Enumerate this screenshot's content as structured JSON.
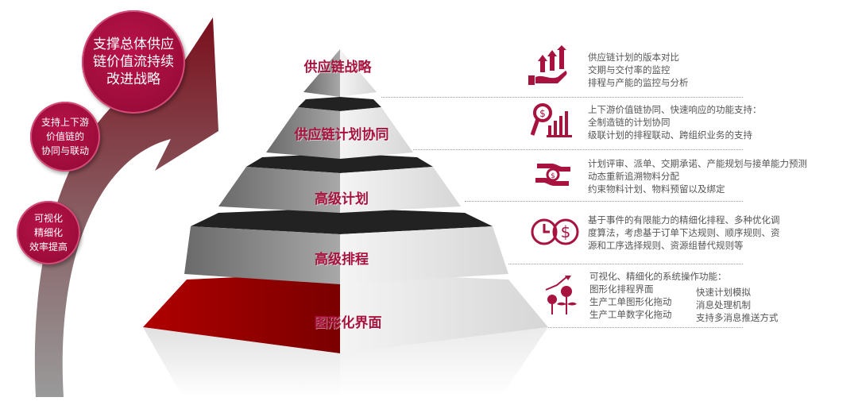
{
  "arrow_circles": [
    {
      "text": "支撑总体供应\n链价值流持续\n改进战略"
    },
    {
      "text": "支持上下游\n价值链的\n协同与联动"
    },
    {
      "text": "可视化\n精细化\n效率提高"
    }
  ],
  "pyramid": {
    "tiers": [
      {
        "label": "供应链战略"
      },
      {
        "label": "供应链计划协同"
      },
      {
        "label": "高级计划"
      },
      {
        "label": "高级排程"
      },
      {
        "label": "图形化界面"
      }
    ]
  },
  "items": [
    {
      "icon": "hand-growth-arrows-icon",
      "lines": [
        "供应链计划的版本对比",
        "交期与交付率的监控",
        "排程与产能的监控与分析"
      ]
    },
    {
      "icon": "magnifier-dollar-chart-icon",
      "lines": [
        "上下游价值链协同、快速响应的功能支持：",
        "全制造链的计划协同",
        "级联计划的排程联动、跨组织业务的支持"
      ]
    },
    {
      "icon": "hands-exchange-icon",
      "lines": [
        "计划评审、派单、交期承诺、产能规划与接单能力预测",
        "动态重新追溯物料分配",
        "约束物料计划、物料预留以及绑定"
      ]
    },
    {
      "icon": "clock-dollar-icon",
      "lines": [
        "基于事件的有限能力的精细化排程、多种优化调",
        "度算法，考虑基于订单下达规则、顺序规则、资",
        "源和工序选择规则、资源组替代规则等"
      ]
    },
    {
      "icon": "money-plant-growth-icon",
      "heading": "可视化、精细化的系统操作功能：",
      "col1": [
        "图形化排程界面",
        "生产工单图形化拖动",
        "生产工单数字化拖动"
      ],
      "col2": [
        "快速计划模拟",
        "消息处理机制",
        "支持多消息推送方式"
      ]
    }
  ],
  "colors": {
    "accent": "#a8123f",
    "text": "#555555",
    "arrow_top": "#7a0f1c",
    "arrow_bottom": "#8a8a8a"
  }
}
